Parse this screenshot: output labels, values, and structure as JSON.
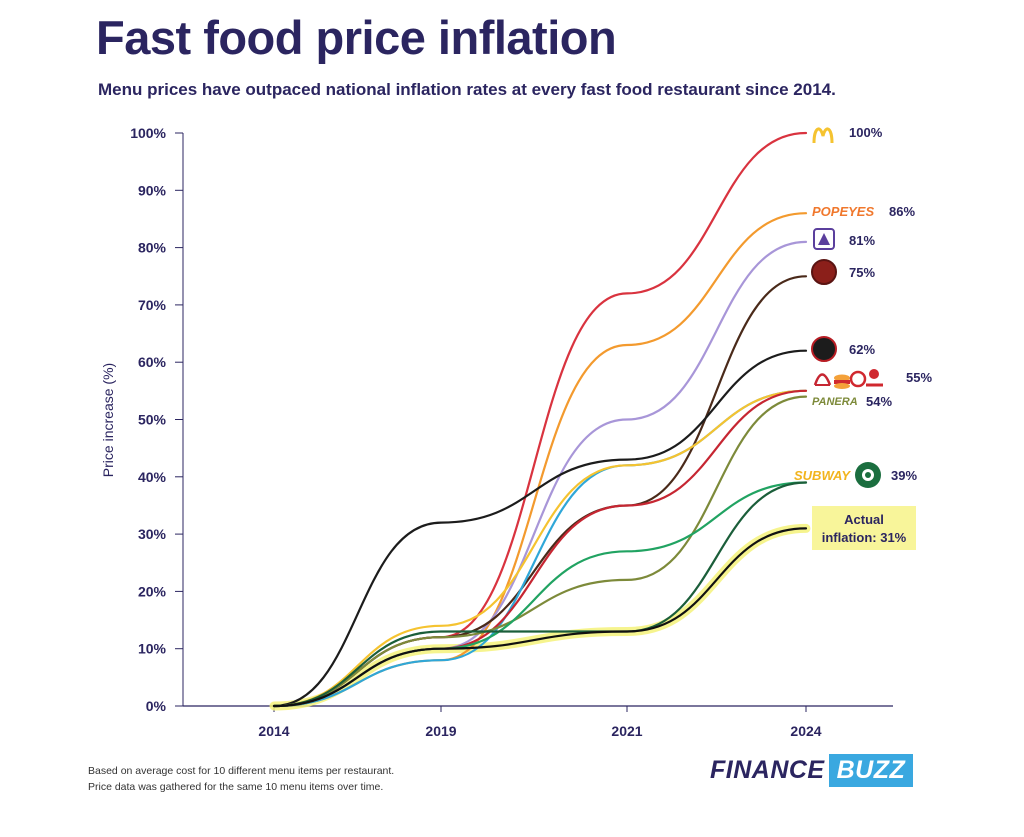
{
  "title": "Fast food price inflation",
  "subtitle": "Menu prices have outpaced national inflation rates at every fast food restaurant since 2014.",
  "footnote": {
    "line1": "Based on average cost for 10 different menu items per restaurant.",
    "line2": "Price data was gathered for the same 10 menu items over time."
  },
  "brand": {
    "part1": "FINANCE",
    "part2": "BUZZ"
  },
  "chart_data": {
    "type": "line",
    "title": "Fast food price inflation",
    "xlabel": "",
    "ylabel": "Price increase (%)",
    "x": [
      "2014",
      "2019",
      "2021",
      "2024"
    ],
    "ylim": [
      0,
      100
    ],
    "yticks": [
      "0%",
      "10%",
      "20%",
      "30%",
      "40%",
      "50%",
      "60%",
      "70%",
      "80%",
      "90%",
      "100%"
    ],
    "series": [
      {
        "name": "McDonald's",
        "color": "#d9333f",
        "values": [
          0,
          12,
          72,
          100
        ]
      },
      {
        "name": "Popeyes",
        "color": "#f39a2e",
        "values": [
          0,
          8,
          63,
          86
        ]
      },
      {
        "name": "Taco Bell",
        "color": "#a896d8",
        "values": [
          0,
          10,
          50,
          81
        ]
      },
      {
        "name": "Chipotle",
        "color": "#4a2a1a",
        "values": [
          0,
          12,
          35,
          75
        ]
      },
      {
        "name": "Jimmy John's",
        "color": "#1c1c1c",
        "values": [
          0,
          32,
          43,
          62
        ]
      },
      {
        "name": "Wendy's",
        "color": "#2fa7d8",
        "values": [
          0,
          8,
          42,
          55
        ]
      },
      {
        "name": "Chick-fil-A",
        "color": "#f5c330",
        "values": [
          0,
          14,
          42,
          55
        ]
      },
      {
        "name": "Arby's",
        "color": "#c62632",
        "values": [
          0,
          10,
          35,
          55
        ]
      },
      {
        "name": "Panera",
        "color": "#7d8a3a",
        "values": [
          0,
          12,
          22,
          54
        ]
      },
      {
        "name": "Subway",
        "color": "#21a362",
        "values": [
          0,
          10,
          27,
          39
        ]
      },
      {
        "name": "Starbucks",
        "color": "#1b5e3a",
        "values": [
          0,
          13,
          13,
          39
        ]
      },
      {
        "name": "Actual inflation",
        "color": "#111111",
        "values": [
          0,
          10,
          13,
          31
        ]
      }
    ],
    "end_labels": [
      {
        "text": "100%",
        "brands": "McDonald's",
        "value": 100
      },
      {
        "text": "86%",
        "brands": "Popeyes",
        "value": 86
      },
      {
        "text": "81%",
        "brands": "Taco Bell",
        "value": 81
      },
      {
        "text": "75%",
        "brands": "Chipotle",
        "value": 75
      },
      {
        "text": "62%",
        "brands": "Jimmy John's",
        "value": 62
      },
      {
        "text": "55%",
        "brands": "Arby's, Burger King, Chick-fil-A, Wendy's",
        "value": 55
      },
      {
        "text": "54%",
        "brands": "Panera",
        "value": 54
      },
      {
        "text": "39%",
        "brands": "Subway, Starbucks",
        "value": 39
      }
    ],
    "logos": {
      "popeyes": "POPEYES",
      "subway": "SUBWAY",
      "panera": "PANERA"
    },
    "inflation_label": {
      "line1": "Actual",
      "line2": "inflation: 31%"
    }
  }
}
